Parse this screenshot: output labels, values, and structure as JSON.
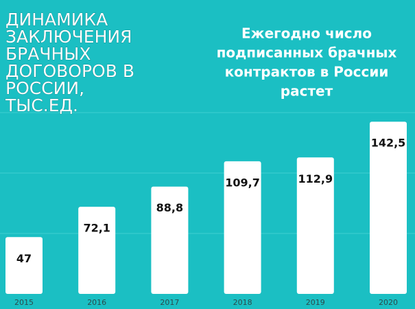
{
  "chart_data": {
    "type": "bar",
    "title": [
      "ДИНАМИКА",
      "ЗАКЛЮЧЕНИЯ",
      "БРАЧНЫХ",
      "ДОГОВОРОВ В",
      "РОССИИ,",
      "ТЫС.ЕД."
    ],
    "subtitle": [
      "Ежегодно число",
      "подписанных брачных",
      "контрактов в России",
      "растет"
    ],
    "categories": [
      "2015",
      "2016",
      "2017",
      "2018",
      "2019",
      "2020"
    ],
    "values": [
      47,
      72.1,
      88.8,
      109.7,
      112.9,
      142.5
    ],
    "value_labels": [
      "47",
      "72,1",
      "88,8",
      "109,7",
      "112,9",
      "142,5"
    ],
    "color": "#ffffff",
    "ylim": [
      0,
      150
    ],
    "yticks": [
      50,
      100,
      150
    ],
    "grid": true
  }
}
